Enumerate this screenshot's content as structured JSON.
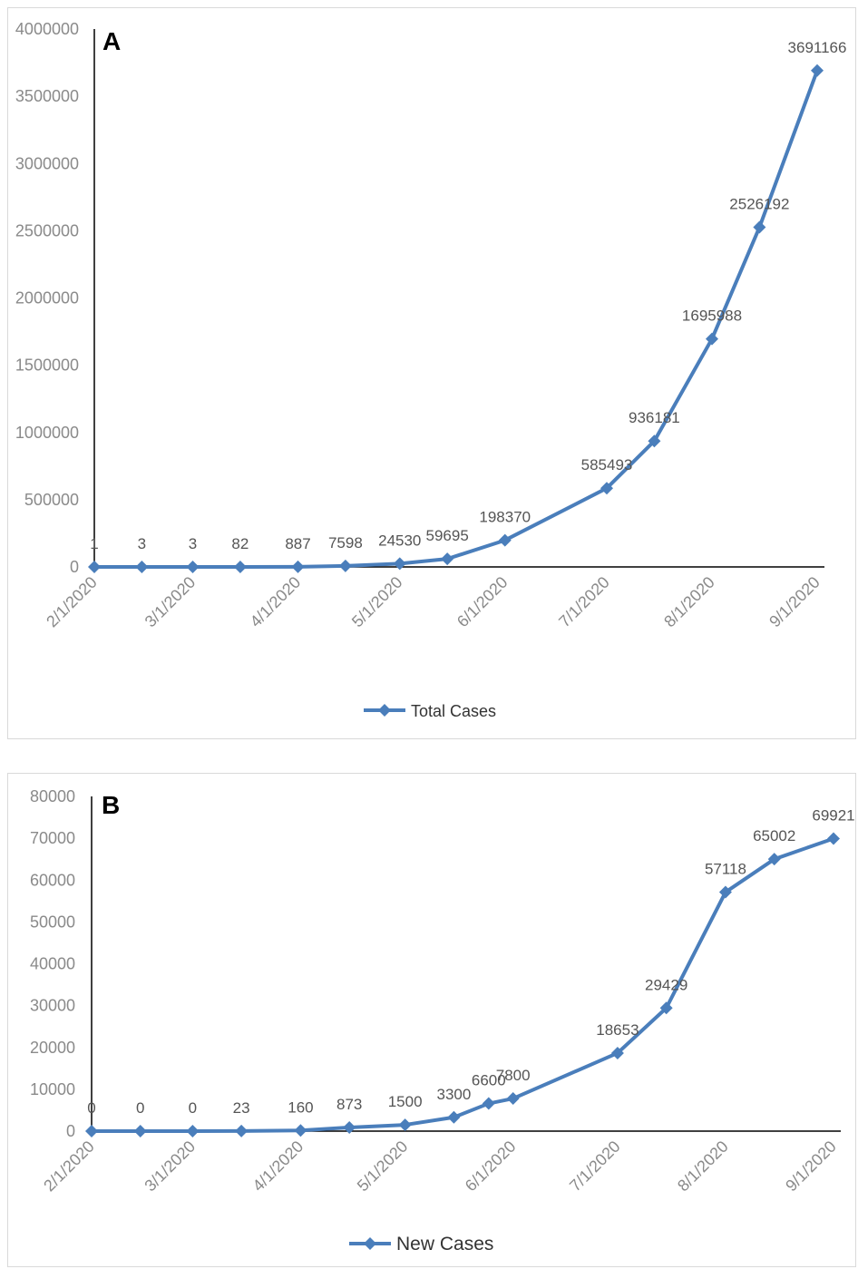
{
  "chart_data": [
    {
      "panel_label": "A",
      "type": "line",
      "x": [
        "2/1/2020",
        "2/15/2020",
        "3/1/2020",
        "3/15/2020",
        "4/1/2020",
        "4/15/2020",
        "5/1/2020",
        "5/15/2020",
        "6/1/2020",
        "7/1/2020",
        "7/15/2020",
        "8/1/2020",
        "8/15/2020",
        "9/1/2020"
      ],
      "x_tick_labels": [
        "2/1/2020",
        "3/1/2020",
        "4/1/2020",
        "5/1/2020",
        "6/1/2020",
        "7/1/2020",
        "8/1/2020",
        "9/1/2020"
      ],
      "series": [
        {
          "name": "Total Cases",
          "color": "#4a7ebb",
          "values": [
            1,
            3,
            3,
            82,
            887,
            7598,
            24530,
            59695,
            198370,
            585493,
            936181,
            1695988,
            2526192,
            3691166
          ],
          "labels": [
            "1",
            "3",
            "3",
            "82",
            "887",
            "7598",
            "24530",
            "59695",
            "198370",
            "585493",
            "936181",
            "1695988",
            "2526192",
            "3691166"
          ]
        }
      ],
      "ylim": [
        0,
        4000000
      ],
      "y_ticks": [
        0,
        500000,
        1000000,
        1500000,
        2000000,
        2500000,
        3000000,
        3500000,
        4000000
      ],
      "legend_position": "bottom",
      "grid": false
    },
    {
      "panel_label": "B",
      "type": "line",
      "x": [
        "2/1/2020",
        "2/15/2020",
        "3/1/2020",
        "3/15/2020",
        "4/1/2020",
        "4/15/2020",
        "5/1/2020",
        "5/15/2020",
        "5/25/2020",
        "6/1/2020",
        "7/1/2020",
        "7/15/2020",
        "8/1/2020",
        "8/15/2020",
        "9/1/2020"
      ],
      "x_tick_labels": [
        "2/1/2020",
        "3/1/2020",
        "4/1/2020",
        "5/1/2020",
        "6/1/2020",
        "7/1/2020",
        "8/1/2020",
        "9/1/2020"
      ],
      "series": [
        {
          "name": "New Cases",
          "color": "#4a7ebb",
          "values": [
            0,
            0,
            0,
            23,
            160,
            873,
            1500,
            3300,
            6600,
            7800,
            18653,
            29429,
            57118,
            65002,
            69921
          ],
          "labels": [
            "0",
            "0",
            "0",
            "23",
            "160",
            "873",
            "1500",
            "3300",
            "6600",
            "7800",
            "18653",
            "29429",
            "57118",
            "65002",
            "69921"
          ]
        }
      ],
      "ylim": [
        0,
        80000
      ],
      "y_ticks": [
        0,
        10000,
        20000,
        30000,
        40000,
        50000,
        60000,
        70000,
        80000
      ],
      "legend_position": "bottom",
      "grid": false
    }
  ]
}
